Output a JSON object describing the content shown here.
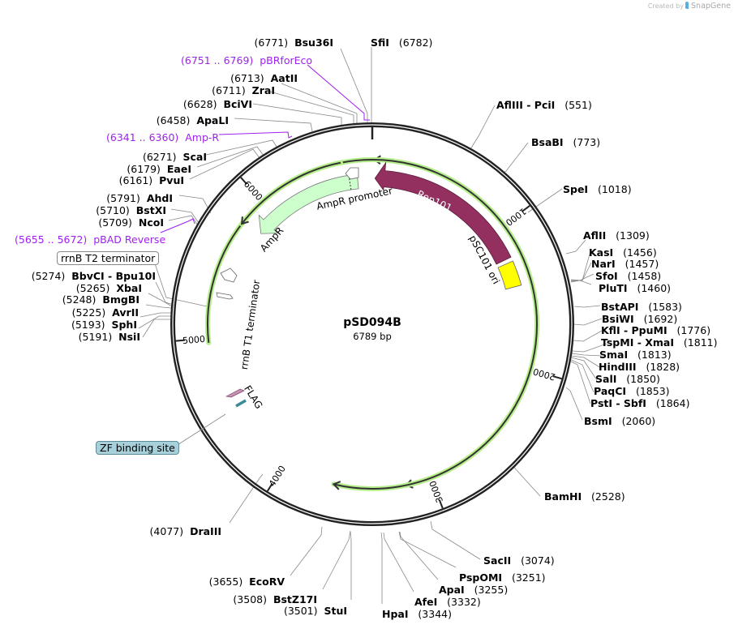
{
  "credit": {
    "prefix": "Created by",
    "brand": "SnapGene"
  },
  "plasmid": {
    "name": "pSD094B",
    "length_label": "6789 bp",
    "length": 6789
  },
  "colors": {
    "backbone": "#222222",
    "primer": "#a020f0",
    "rep101": "#93305f",
    "ori": "#ffff00",
    "ampr_fill": "#ccffcc",
    "green_track": "#9de36a",
    "orange_track": "#f5c06a",
    "flag": "#c98fb0",
    "zf": "#3a8a9a"
  },
  "ticks": [
    {
      "bp": 1000,
      "label": "1000"
    },
    {
      "bp": 2000,
      "label": "2000"
    },
    {
      "bp": 3000,
      "label": "3000"
    },
    {
      "bp": 4000,
      "label": "4000"
    },
    {
      "bp": 5000,
      "label": "5000"
    },
    {
      "bp": 6000,
      "label": "6000"
    }
  ],
  "features": [
    {
      "name": "Rep101",
      "type": "cds",
      "color": "#93305f"
    },
    {
      "name": "pSC101 ori",
      "type": "rep_origin",
      "color": "#ffff00"
    },
    {
      "name": "AmpR",
      "type": "cds",
      "color": "#ccffcc"
    },
    {
      "name": "AmpR promoter",
      "type": "promoter"
    },
    {
      "name": "rrnB T1 terminator",
      "type": "terminator"
    },
    {
      "name": "rrnB T2 terminator",
      "type": "terminator"
    },
    {
      "name": "FLAG",
      "type": "tag"
    },
    {
      "name": "ZF binding site",
      "type": "misc"
    }
  ],
  "primers": [
    {
      "range": "(6751 .. 6769)",
      "name": "pBRforEco"
    },
    {
      "range": "(6341 .. 6360)",
      "name": "Amp-R"
    },
    {
      "range": "(5655 .. 5672)",
      "name": "pBAD Reverse"
    }
  ],
  "sites_left": [
    {
      "pos": "(6771)",
      "name": "Bsu36I"
    },
    {
      "pos": "(6713)",
      "name": "AatII"
    },
    {
      "pos": "(6711)",
      "name": "ZraI"
    },
    {
      "pos": "(6628)",
      "name": "BciVI"
    },
    {
      "pos": "(6458)",
      "name": "ApaLI"
    },
    {
      "pos": "(6271)",
      "name": "ScaI"
    },
    {
      "pos": "(6179)",
      "name": "EaeI"
    },
    {
      "pos": "(6161)",
      "name": "PvuI"
    },
    {
      "pos": "(5791)",
      "name": "AhdI"
    },
    {
      "pos": "(5710)",
      "name": "BstXI"
    },
    {
      "pos": "(5709)",
      "name": "NcoI"
    },
    {
      "pos": "(5274)",
      "name": "BbvCI  - Bpu10I"
    },
    {
      "pos": "(5265)",
      "name": "XbaI"
    },
    {
      "pos": "(5248)",
      "name": "BmgBI"
    },
    {
      "pos": "(5225)",
      "name": "AvrII"
    },
    {
      "pos": "(5193)",
      "name": "SphI"
    },
    {
      "pos": "(5191)",
      "name": "NsiI"
    },
    {
      "pos": "(4077)",
      "name": "DraIII"
    },
    {
      "pos": "(3655)",
      "name": "EcoRV"
    },
    {
      "pos": "(3508)",
      "name": "BstZ17I"
    },
    {
      "pos": "(3501)",
      "name": "StuI"
    }
  ],
  "sites_right": [
    {
      "name": "SfiI",
      "pos": "(6782)"
    },
    {
      "name": "AflIII  - PciI",
      "pos": "(551)"
    },
    {
      "name": "BsaBI",
      "pos": "(773)"
    },
    {
      "name": "SpeI",
      "pos": "(1018)"
    },
    {
      "name": "AflII",
      "pos": "(1309)"
    },
    {
      "name": "KasI",
      "pos": "(1456)"
    },
    {
      "name": "NarI",
      "pos": "(1457)"
    },
    {
      "name": "SfoI",
      "pos": "(1458)"
    },
    {
      "name": "PluTI",
      "pos": "(1460)"
    },
    {
      "name": "BstAPI",
      "pos": "(1583)"
    },
    {
      "name": "BsiWI",
      "pos": "(1692)"
    },
    {
      "name": "KflI  - PpuMI",
      "pos": "(1776)"
    },
    {
      "name": "TspMI  - XmaI",
      "pos": "(1811)"
    },
    {
      "name": "SmaI",
      "pos": "(1813)"
    },
    {
      "name": "HindIII",
      "pos": "(1828)"
    },
    {
      "name": "SalI",
      "pos": "(1850)"
    },
    {
      "name": "PaqCI",
      "pos": "(1853)"
    },
    {
      "name": "PstI  - SbfI",
      "pos": "(1864)"
    },
    {
      "name": "BsmI",
      "pos": "(2060)"
    },
    {
      "name": "BamHI",
      "pos": "(2528)"
    },
    {
      "name": "SacII",
      "pos": "(3074)"
    },
    {
      "name": "PspOMI",
      "pos": "(3251)"
    },
    {
      "name": "ApaI",
      "pos": "(3255)"
    },
    {
      "name": "AfeI",
      "pos": "(3332)"
    },
    {
      "name": "HpaI",
      "pos": "(3344)"
    }
  ]
}
